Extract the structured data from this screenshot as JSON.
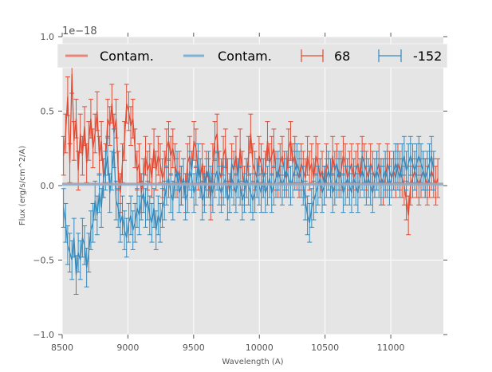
{
  "chart_data": {
    "type": "line",
    "title": "",
    "xlabel": "Wavelength (A)",
    "ylabel": "Flux (erg/s/cm^2/A)",
    "offset_label": "1e−18",
    "xlim": [
      8500,
      11400
    ],
    "ylim": [
      -1.0,
      1.0
    ],
    "grid": true,
    "legend_placement": "top",
    "x_ticks": [
      8500,
      9000,
      9500,
      10000,
      10500,
      11000
    ],
    "x_tick_labels": [
      "8500",
      "9000",
      "9500",
      "10000",
      "10500",
      "11000"
    ],
    "y_ticks": [
      -1.0,
      -0.5,
      0.0,
      0.5,
      1.0
    ],
    "y_tick_labels": [
      "−1.0",
      "−0.5",
      "0.0",
      "0.5",
      "1.0"
    ],
    "colors": {
      "red": "#e24a33",
      "blue": "#348abd",
      "red_contam": "#e8867a",
      "blue_contam": "#7fb3d5",
      "plot_bg": "#e5e5e5",
      "grid": "#ffffff"
    },
    "legend": [
      {
        "label": "Contam.",
        "kind": "line",
        "color": "red_contam"
      },
      {
        "label": "Contam.",
        "kind": "line",
        "color": "blue_contam"
      },
      {
        "label": "68",
        "kind": "errorbar",
        "color": "red"
      },
      {
        "label": "-152",
        "kind": "errorbar",
        "color": "blue"
      }
    ],
    "contam": [
      {
        "name": "Contam. (68)",
        "value": 0.012
      },
      {
        "name": "Contam. (-152)",
        "value": 0.006
      }
    ],
    "series": [
      {
        "name": "68",
        "color": "red",
        "x_start": 8510,
        "x_step": 16,
        "values": [
          0.2,
          0.35,
          0.6,
          0.15,
          0.75,
          0.3,
          0.45,
          0.1,
          0.35,
          0.2,
          0.4,
          0.15,
          0.3,
          0.45,
          0.25,
          0.35,
          0.5,
          0.2,
          0.3,
          0.05,
          0.15,
          0.45,
          0.4,
          0.55,
          0.35,
          0.45,
          0.1,
          -0.05,
          0.15,
          0.3,
          0.55,
          0.5,
          0.4,
          0.45,
          0.25,
          0.1,
          0.15,
          -0.05,
          0.05,
          0.2,
          0.1,
          0.15,
          0.05,
          0.25,
          0.1,
          0.2,
          0.15,
          0.05,
          0.1,
          0.25,
          0.3,
          0.2,
          0.25,
          0.15,
          0.05,
          0.1,
          0.0,
          0.05,
          -0.05,
          0.15,
          0.2,
          0.1,
          0.3,
          0.25,
          0.1,
          0.05,
          0.15,
          0.0,
          0.1,
          0.05,
          -0.1,
          0.15,
          0.3,
          0.35,
          0.1,
          0.05,
          0.2,
          0.25,
          0.05,
          -0.05,
          0.15,
          0.1,
          0.2,
          0.05,
          0.25,
          0.1,
          0.0,
          0.05,
          0.2,
          0.35,
          0.15,
          0.1,
          0.05,
          0.2,
          0.15,
          0.05,
          0.1,
          0.3,
          0.15,
          0.2,
          0.25,
          0.1,
          0.05,
          0.15,
          0.2,
          0.1,
          0.05,
          0.25,
          0.3,
          0.15,
          0.2,
          0.1,
          0.05,
          0.15,
          0.1,
          0.05,
          0.2,
          0.1,
          0.15,
          0.05,
          0.2,
          0.15,
          0.05,
          0.1,
          0.0,
          0.15,
          0.1,
          0.05,
          0.2,
          0.1,
          0.15,
          0.05,
          0.1,
          0.2,
          0.15,
          0.05,
          0.1,
          0.15,
          0.05,
          0.1,
          0.15,
          0.05,
          0.2,
          0.15,
          0.1,
          0.05,
          0.15,
          0.1,
          0.05,
          0.1,
          0.15,
          0.05,
          0.0,
          0.05,
          0.15,
          0.1,
          0.05,
          0.1,
          0.05,
          0.15,
          0.1,
          0.05,
          0.0,
          -0.1,
          -0.2,
          0.0,
          0.05,
          0.1,
          0.05,
          0.0,
          0.05,
          0.1,
          0.05,
          0.0,
          0.05,
          0.1,
          0.05,
          0.0,
          0.05
        ],
        "errors": 0.13
      },
      {
        "name": "-152",
        "color": "blue",
        "x_start": 8510,
        "x_step": 16,
        "values": [
          -0.15,
          -0.25,
          -0.4,
          -0.45,
          -0.5,
          -0.35,
          -0.6,
          -0.45,
          -0.5,
          -0.35,
          -0.4,
          -0.55,
          -0.45,
          -0.3,
          -0.25,
          -0.1,
          -0.2,
          -0.05,
          -0.15,
          0.05,
          0.1,
          0.2,
          -0.05,
          0.1,
          0.25,
          -0.1,
          -0.15,
          -0.25,
          -0.2,
          -0.3,
          -0.35,
          -0.25,
          -0.2,
          -0.3,
          -0.25,
          -0.15,
          -0.2,
          -0.1,
          -0.05,
          -0.15,
          -0.1,
          -0.2,
          -0.25,
          -0.15,
          -0.3,
          -0.2,
          -0.25,
          -0.15,
          -0.1,
          0.0,
          0.05,
          -0.05,
          -0.1,
          0.05,
          0.1,
          -0.05,
          0.0,
          0.05,
          -0.1,
          -0.05,
          0.1,
          0.05,
          -0.05,
          0.0,
          0.15,
          0.05,
          -0.1,
          -0.05,
          0.05,
          0.1,
          0.0,
          -0.05,
          0.05,
          0.1,
          0.0,
          -0.05,
          0.0,
          0.05,
          -0.1,
          -0.05,
          0.05,
          0.0,
          -0.05,
          0.05,
          0.0,
          -0.1,
          -0.05,
          0.05,
          0.0,
          -0.05,
          -0.1,
          -0.05,
          0.05,
          0.0,
          -0.05,
          0.05,
          -0.05,
          0.0,
          0.05,
          -0.05,
          0.0,
          0.05,
          0.1,
          0.05,
          0.0,
          0.05,
          0.1,
          0.05,
          0.0,
          0.05,
          0.1,
          0.15,
          0.1,
          0.05,
          0.0,
          -0.1,
          -0.2,
          -0.25,
          -0.15,
          -0.1,
          -0.05,
          0.0,
          0.05,
          -0.05,
          0.0,
          0.05,
          0.1,
          0.05,
          -0.05,
          0.0,
          0.05,
          0.1,
          0.05,
          -0.05,
          0.0,
          0.05,
          0.0,
          -0.05,
          0.05,
          0.0,
          -0.05,
          0.05,
          0.1,
          0.05,
          0.0,
          0.05,
          0.0,
          -0.05,
          0.05,
          0.1,
          0.05,
          0.0,
          0.05,
          0.1,
          0.05,
          0.0,
          0.05,
          0.1,
          0.15,
          0.1,
          0.05,
          0.15,
          0.2,
          0.1,
          0.15,
          0.2,
          0.15,
          0.1,
          0.15,
          0.2,
          0.15,
          0.1,
          0.05,
          0.1,
          0.15,
          0.2,
          0.1
        ],
        "errors": 0.13
      }
    ]
  }
}
